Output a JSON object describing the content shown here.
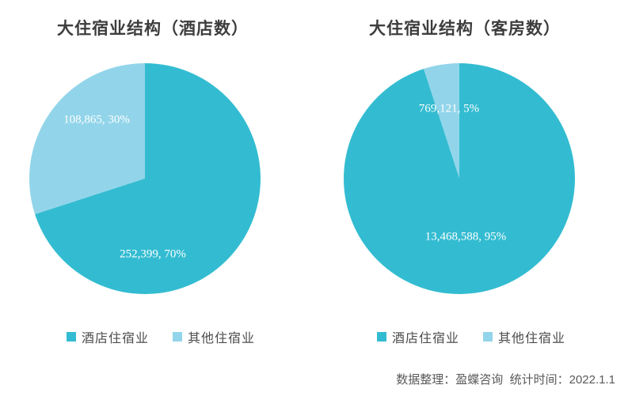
{
  "chart_data": [
    {
      "type": "pie",
      "title": "大住宿业结构（酒店数）",
      "start_angle_deg": 0,
      "direction": "clockwise",
      "legend_position": "bottom",
      "slices": [
        {
          "label": "酒店住宿业",
          "value": 252399,
          "pct": 70,
          "color": "#33bcd1",
          "data_label": "252,399, 70%"
        },
        {
          "label": "其他住宿业",
          "value": 108865,
          "pct": 30,
          "color": "#92d5ea",
          "data_label": "108,865, 30%"
        }
      ]
    },
    {
      "type": "pie",
      "title": "大住宿业结构（客房数）",
      "start_angle_deg": 0,
      "direction": "clockwise",
      "legend_position": "bottom",
      "slices": [
        {
          "label": "酒店住宿业",
          "value": 13468588,
          "pct": 95,
          "color": "#33bcd1",
          "data_label": "13,468,588, 95%"
        },
        {
          "label": "其他住宿业",
          "value": 769121,
          "pct": 5,
          "color": "#92d5ea",
          "data_label": "769,121, 5%"
        }
      ]
    }
  ],
  "footer": {
    "source_note": "数据整理：盈蝶咨询  统计时间：2022.1.1"
  }
}
